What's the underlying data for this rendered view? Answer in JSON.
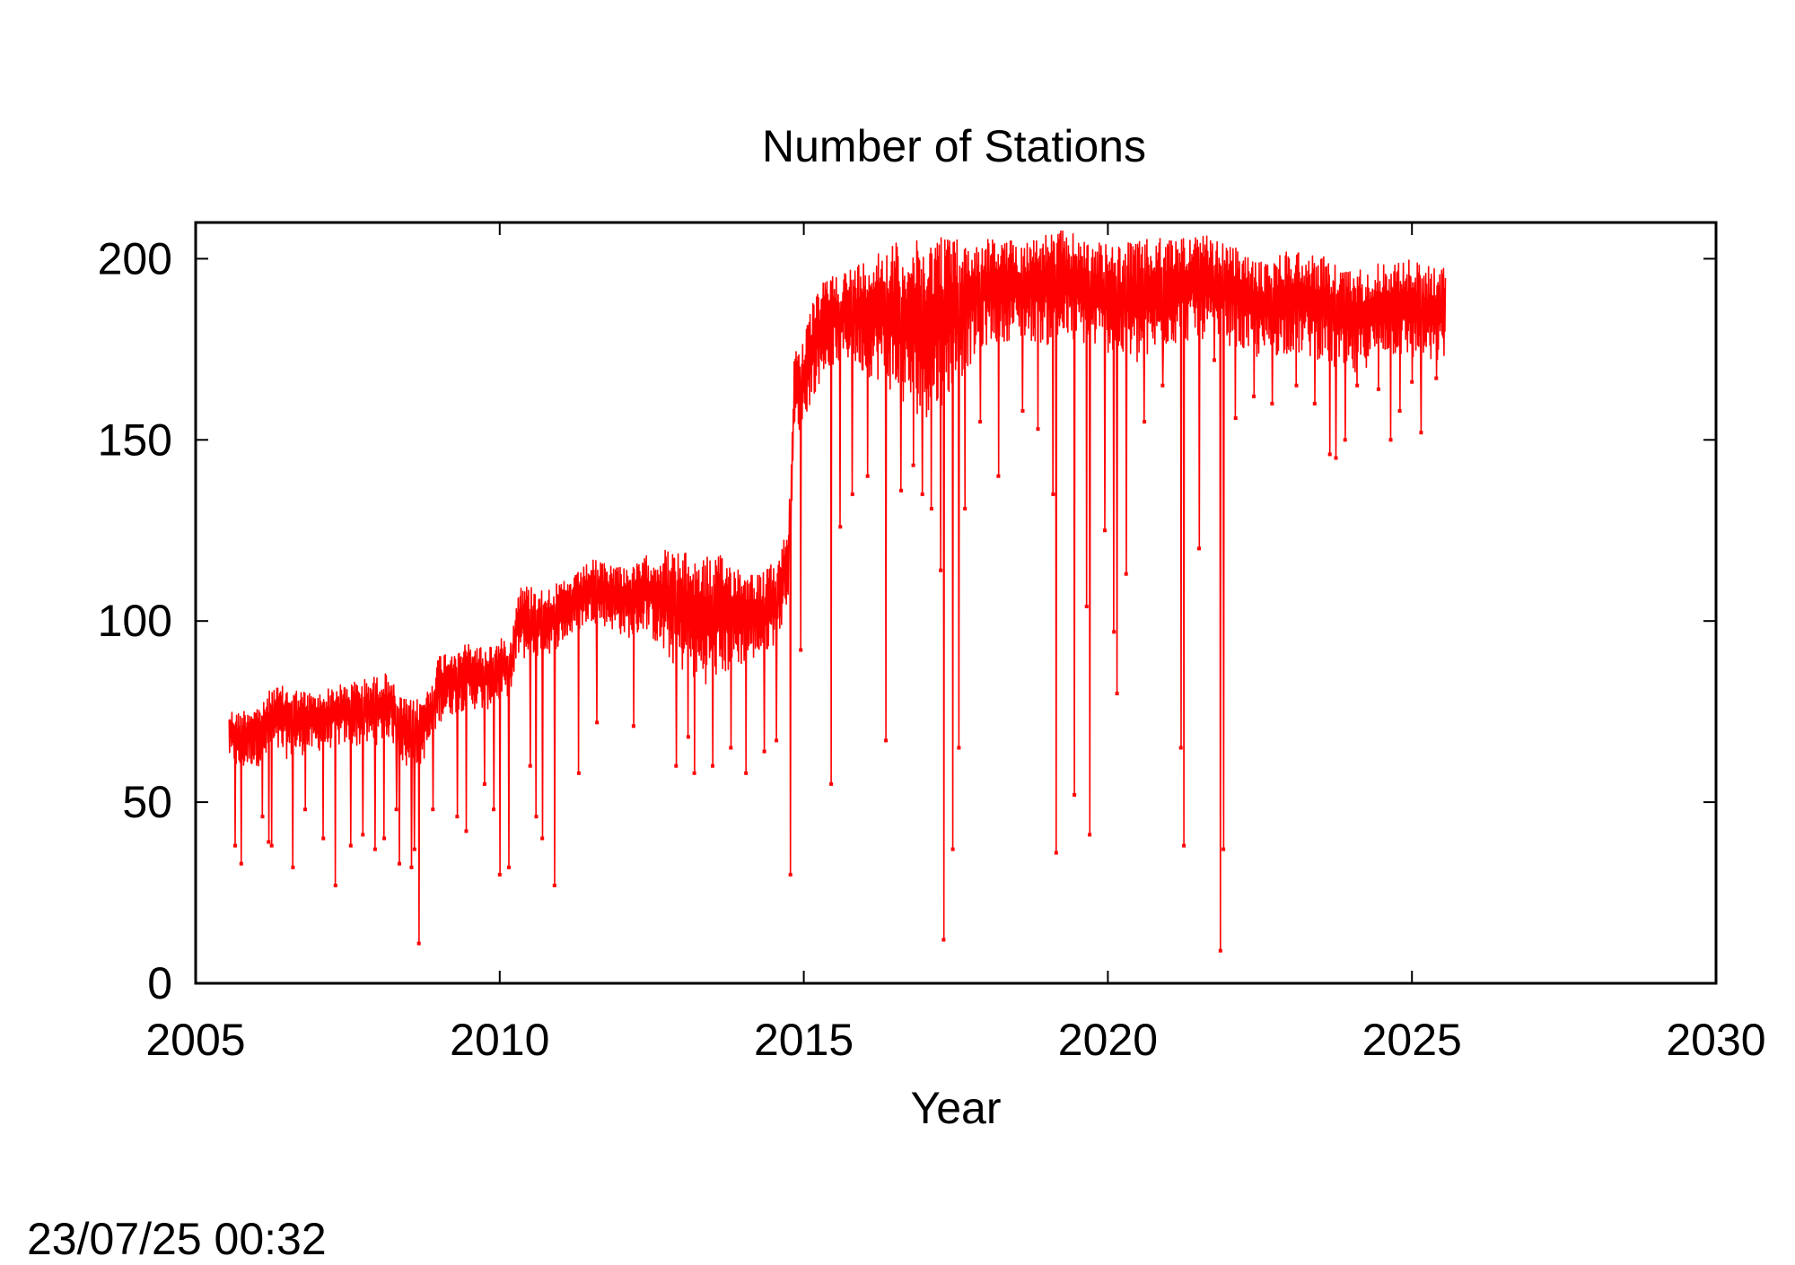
{
  "chart_data": {
    "type": "line",
    "title": "Number of Stations",
    "xlabel": "Year",
    "ylabel": "",
    "xlim": [
      2005,
      2030
    ],
    "ylim": [
      0,
      210
    ],
    "xticks": [
      2005,
      2010,
      2015,
      2020,
      2025,
      2030
    ],
    "yticks": [
      0,
      50,
      100,
      150,
      200
    ],
    "grid": false,
    "line_color": "#ff0000",
    "series": [
      {
        "values_upper": [
          [
            2005.55,
            76
          ],
          [
            2005.7,
            75
          ],
          [
            2005.9,
            77
          ],
          [
            2006.1,
            77
          ],
          [
            2006.25,
            82
          ],
          [
            2006.5,
            82
          ],
          [
            2006.75,
            81
          ],
          [
            2007.0,
            80
          ],
          [
            2007.25,
            82
          ],
          [
            2007.5,
            83
          ],
          [
            2007.75,
            84
          ],
          [
            2008.0,
            85
          ],
          [
            2008.2,
            86
          ],
          [
            2008.3,
            80
          ],
          [
            2008.5,
            78
          ],
          [
            2008.7,
            79
          ],
          [
            2008.85,
            82
          ],
          [
            2009.0,
            91
          ],
          [
            2009.2,
            93
          ],
          [
            2009.5,
            94
          ],
          [
            2009.75,
            93
          ],
          [
            2010.0,
            95
          ],
          [
            2010.2,
            96
          ],
          [
            2010.3,
            110
          ],
          [
            2010.6,
            110
          ],
          [
            2010.9,
            110
          ],
          [
            2011.2,
            112
          ],
          [
            2011.5,
            117
          ],
          [
            2011.8,
            116
          ],
          [
            2012.0,
            116
          ],
          [
            2012.2,
            115
          ],
          [
            2012.4,
            118
          ],
          [
            2012.7,
            120
          ],
          [
            2013.0,
            119
          ],
          [
            2013.3,
            118
          ],
          [
            2013.7,
            118
          ],
          [
            2014.0,
            115
          ],
          [
            2014.3,
            113
          ],
          [
            2014.6,
            118
          ],
          [
            2014.75,
            128
          ],
          [
            2014.85,
            177
          ],
          [
            2015.0,
            178
          ],
          [
            2015.15,
            188
          ],
          [
            2015.4,
            196
          ],
          [
            2015.7,
            197
          ],
          [
            2016.0,
            200
          ],
          [
            2016.3,
            204
          ],
          [
            2016.7,
            205
          ],
          [
            2017.0,
            205
          ],
          [
            2017.3,
            208
          ],
          [
            2017.7,
            204
          ],
          [
            2018.0,
            206
          ],
          [
            2018.5,
            205
          ],
          [
            2019.0,
            207
          ],
          [
            2019.3,
            208
          ],
          [
            2019.7,
            205
          ],
          [
            2020.0,
            204
          ],
          [
            2020.5,
            205
          ],
          [
            2021.0,
            206
          ],
          [
            2021.5,
            207
          ],
          [
            2022.0,
            204
          ],
          [
            2022.5,
            199
          ],
          [
            2023.0,
            203
          ],
          [
            2023.5,
            201
          ],
          [
            2024.0,
            197
          ],
          [
            2024.5,
            199
          ],
          [
            2025.0,
            200
          ],
          [
            2025.3,
            198
          ],
          [
            2025.55,
            198
          ]
        ],
        "values_lower": [
          [
            2005.55,
            62
          ],
          [
            2005.7,
            58
          ],
          [
            2005.9,
            60
          ],
          [
            2006.1,
            60
          ],
          [
            2006.25,
            64
          ],
          [
            2006.5,
            62
          ],
          [
            2006.75,
            63
          ],
          [
            2007.0,
            64
          ],
          [
            2007.25,
            65
          ],
          [
            2007.5,
            66
          ],
          [
            2007.75,
            65
          ],
          [
            2008.0,
            66
          ],
          [
            2008.2,
            68
          ],
          [
            2008.3,
            64
          ],
          [
            2008.5,
            58
          ],
          [
            2008.7,
            60
          ],
          [
            2008.85,
            65
          ],
          [
            2009.0,
            72
          ],
          [
            2009.2,
            74
          ],
          [
            2009.5,
            76
          ],
          [
            2009.75,
            75
          ],
          [
            2010.0,
            78
          ],
          [
            2010.2,
            80
          ],
          [
            2010.3,
            90
          ],
          [
            2010.6,
            88
          ],
          [
            2010.9,
            92
          ],
          [
            2011.2,
            96
          ],
          [
            2011.5,
            100
          ],
          [
            2011.8,
            98
          ],
          [
            2012.0,
            96
          ],
          [
            2012.2,
            95
          ],
          [
            2012.4,
            98
          ],
          [
            2012.7,
            90
          ],
          [
            2013.0,
            86
          ],
          [
            2013.3,
            82
          ],
          [
            2013.7,
            85
          ],
          [
            2014.0,
            88
          ],
          [
            2014.3,
            90
          ],
          [
            2014.6,
            95
          ],
          [
            2014.75,
            108
          ],
          [
            2014.85,
            150
          ],
          [
            2015.0,
            155
          ],
          [
            2015.15,
            162
          ],
          [
            2015.4,
            170
          ],
          [
            2015.7,
            172
          ],
          [
            2016.0,
            168
          ],
          [
            2016.3,
            166
          ],
          [
            2016.7,
            158
          ],
          [
            2017.0,
            156
          ],
          [
            2017.3,
            160
          ],
          [
            2017.7,
            170
          ],
          [
            2018.0,
            176
          ],
          [
            2018.5,
            178
          ],
          [
            2019.0,
            176
          ],
          [
            2019.3,
            177
          ],
          [
            2019.7,
            176
          ],
          [
            2020.0,
            174
          ],
          [
            2020.5,
            170
          ],
          [
            2021.0,
            176
          ],
          [
            2021.5,
            178
          ],
          [
            2022.0,
            176
          ],
          [
            2022.5,
            172
          ],
          [
            2023.0,
            174
          ],
          [
            2023.5,
            172
          ],
          [
            2024.0,
            166
          ],
          [
            2024.5,
            174
          ],
          [
            2025.0,
            172
          ],
          [
            2025.3,
            170
          ],
          [
            2025.55,
            172
          ]
        ],
        "dips": [
          [
            2005.65,
            38
          ],
          [
            2005.75,
            33
          ],
          [
            2006.1,
            46
          ],
          [
            2006.2,
            39
          ],
          [
            2006.25,
            38
          ],
          [
            2006.6,
            32
          ],
          [
            2006.8,
            48
          ],
          [
            2007.1,
            40
          ],
          [
            2007.3,
            27
          ],
          [
            2007.55,
            38
          ],
          [
            2007.75,
            41
          ],
          [
            2007.95,
            37
          ],
          [
            2008.1,
            40
          ],
          [
            2008.3,
            48
          ],
          [
            2008.35,
            33
          ],
          [
            2008.55,
            32
          ],
          [
            2008.6,
            37
          ],
          [
            2008.67,
            11
          ],
          [
            2008.9,
            48
          ],
          [
            2009.3,
            46
          ],
          [
            2009.45,
            42
          ],
          [
            2009.75,
            55
          ],
          [
            2009.9,
            48
          ],
          [
            2010.0,
            30
          ],
          [
            2010.15,
            32
          ],
          [
            2010.5,
            60
          ],
          [
            2010.6,
            46
          ],
          [
            2010.7,
            40
          ],
          [
            2010.9,
            27
          ],
          [
            2011.3,
            58
          ],
          [
            2011.6,
            72
          ],
          [
            2012.2,
            71
          ],
          [
            2012.9,
            60
          ],
          [
            2013.1,
            68
          ],
          [
            2013.2,
            58
          ],
          [
            2013.5,
            60
          ],
          [
            2013.8,
            65
          ],
          [
            2014.05,
            58
          ],
          [
            2014.35,
            64
          ],
          [
            2014.55,
            67
          ],
          [
            2014.78,
            30
          ],
          [
            2014.95,
            92
          ],
          [
            2015.45,
            55
          ],
          [
            2015.6,
            126
          ],
          [
            2015.8,
            135
          ],
          [
            2016.05,
            140
          ],
          [
            2016.35,
            67
          ],
          [
            2016.6,
            136
          ],
          [
            2016.8,
            143
          ],
          [
            2016.95,
            135
          ],
          [
            2017.1,
            131
          ],
          [
            2017.25,
            114
          ],
          [
            2017.3,
            12
          ],
          [
            2017.45,
            37
          ],
          [
            2017.55,
            65
          ],
          [
            2017.65,
            131
          ],
          [
            2017.9,
            155
          ],
          [
            2018.2,
            140
          ],
          [
            2018.6,
            158
          ],
          [
            2018.85,
            153
          ],
          [
            2019.1,
            135
          ],
          [
            2019.15,
            36
          ],
          [
            2019.45,
            52
          ],
          [
            2019.65,
            104
          ],
          [
            2019.7,
            41
          ],
          [
            2019.95,
            125
          ],
          [
            2020.1,
            97
          ],
          [
            2020.15,
            80
          ],
          [
            2020.3,
            113
          ],
          [
            2020.6,
            155
          ],
          [
            2020.9,
            165
          ],
          [
            2021.2,
            65
          ],
          [
            2021.25,
            38
          ],
          [
            2021.5,
            120
          ],
          [
            2021.75,
            172
          ],
          [
            2021.85,
            9
          ],
          [
            2021.9,
            37
          ],
          [
            2022.1,
            156
          ],
          [
            2022.4,
            162
          ],
          [
            2022.7,
            160
          ],
          [
            2023.1,
            165
          ],
          [
            2023.4,
            160
          ],
          [
            2023.65,
            146
          ],
          [
            2023.75,
            145
          ],
          [
            2023.9,
            150
          ],
          [
            2024.1,
            165
          ],
          [
            2024.45,
            164
          ],
          [
            2024.65,
            150
          ],
          [
            2024.8,
            158
          ],
          [
            2025.0,
            166
          ],
          [
            2025.15,
            152
          ],
          [
            2025.4,
            167
          ]
        ]
      }
    ]
  },
  "footer": {
    "timestamp": "23/07/25 00:32"
  }
}
